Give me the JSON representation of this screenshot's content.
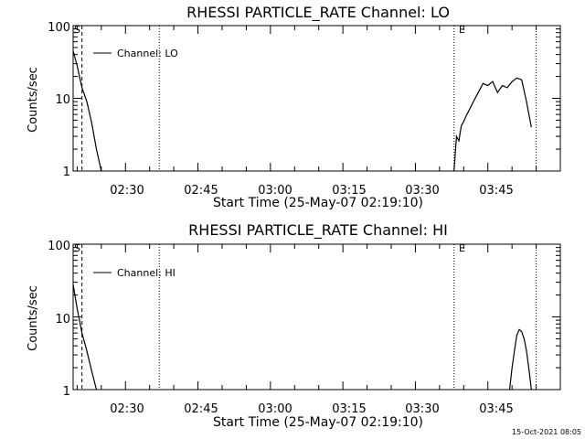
{
  "timestamp": "15-Oct-2021 08:05",
  "chart_data": [
    {
      "type": "line",
      "title": "RHESSI PARTICLE_RATE Channel: LO",
      "xlabel": "Start Time (25-May-07 02:19:10)",
      "ylabel": "Counts/sec",
      "xlim_minutes_after_start": [
        0,
        100.83
      ],
      "ylim": [
        1,
        100
      ],
      "yscale": "log",
      "x_ticks": [
        "02:30",
        "02:45",
        "03:00",
        "03:15",
        "03:30",
        "03:45"
      ],
      "y_ticks": [
        "1",
        "10",
        "100"
      ],
      "legend": "Channel: LO",
      "legend_position": "top-left",
      "markers": [
        {
          "label": "S",
          "style": "dashed",
          "time": "02:21"
        },
        {
          "label": "",
          "style": "dotted",
          "time": "02:37"
        },
        {
          "label": "E",
          "style": "dotted",
          "time": "03:38"
        },
        {
          "label": "",
          "style": "dotted",
          "time": "03:55"
        }
      ],
      "series": [
        {
          "x": [
            "02:19:10",
            "02:20",
            "02:21",
            "02:22",
            "02:23",
            "02:24",
            "02:25"
          ],
          "values": [
            45,
            28,
            14,
            9,
            4.6,
            2.0,
            1.0
          ]
        },
        {
          "x": [
            "03:38",
            "03:38:30",
            "03:39",
            "03:39:30",
            "03:40",
            "03:40:30",
            "03:41",
            "03:42",
            "03:43",
            "03:44",
            "03:45",
            "03:46",
            "03:47",
            "03:48",
            "03:49",
            "03:50",
            "03:51",
            "03:52",
            "03:53",
            "03:54"
          ],
          "values": [
            1.0,
            3.0,
            2.6,
            4.2,
            4.8,
            5.7,
            6.6,
            9,
            12,
            16,
            15,
            17,
            12,
            15,
            14,
            17,
            19,
            18,
            9,
            4.0
          ]
        }
      ]
    },
    {
      "type": "line",
      "title": "RHESSI PARTICLE_RATE Channel: HI",
      "xlabel": "Start Time (25-May-07 02:19:10)",
      "ylabel": "Counts/sec",
      "xlim_minutes_after_start": [
        0,
        100.83
      ],
      "ylim": [
        1,
        100
      ],
      "yscale": "log",
      "x_ticks": [
        "02:30",
        "02:45",
        "03:00",
        "03:15",
        "03:30",
        "03:45"
      ],
      "y_ticks": [
        "1",
        "10",
        "100"
      ],
      "legend": "Channel: HI",
      "legend_position": "top-left",
      "markers": [
        {
          "label": "S",
          "style": "dashed",
          "time": "02:21"
        },
        {
          "label": "",
          "style": "dotted",
          "time": "02:37"
        },
        {
          "label": "E",
          "style": "dotted",
          "time": "03:38"
        },
        {
          "label": "",
          "style": "dotted",
          "time": "03:55"
        }
      ],
      "series": [
        {
          "x": [
            "02:19:10",
            "02:20",
            "02:21",
            "02:22",
            "02:23",
            "02:24"
          ],
          "values": [
            28,
            13,
            6,
            3.4,
            1.8,
            1.0
          ]
        },
        {
          "x": [
            "03:49:30",
            "03:50",
            "03:50:30",
            "03:51",
            "03:51:30",
            "03:52",
            "03:52:30",
            "03:53",
            "03:53:30",
            "03:54"
          ],
          "values": [
            1.0,
            2.0,
            3.4,
            5.6,
            6.7,
            6.3,
            5.0,
            3.4,
            1.9,
            1.0
          ]
        }
      ]
    }
  ]
}
